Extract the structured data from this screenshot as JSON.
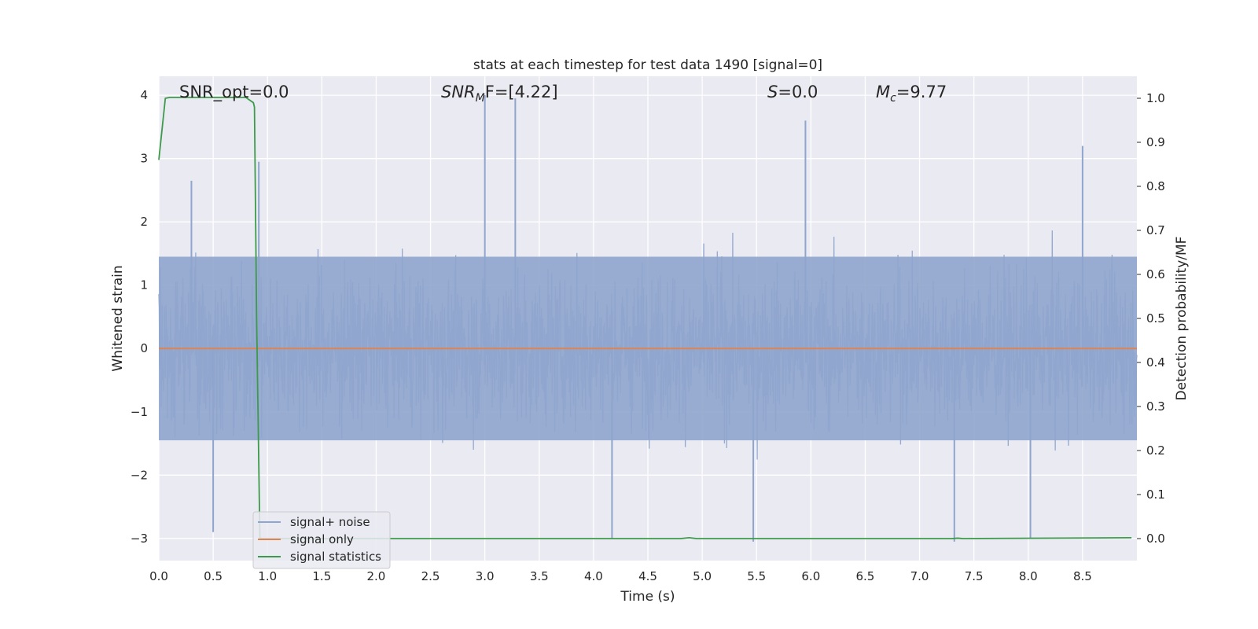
{
  "chart_data": {
    "type": "line",
    "title": "stats at each timestep for test data 1490 [signal=0]",
    "xlabel": "Time (s)",
    "ylabel_left": "Whitened strain",
    "ylabel_right": "Detection probability/MF",
    "xlim": [
      0,
      9
    ],
    "ylim_left": [
      -3.35,
      4.3
    ],
    "ylim_right": [
      -0.05,
      1.05
    ],
    "xticks": [
      "0.0",
      "0.5",
      "1.0",
      "1.5",
      "2.0",
      "2.5",
      "3.0",
      "3.5",
      "4.0",
      "4.5",
      "5.0",
      "5.5",
      "6.0",
      "6.5",
      "7.0",
      "7.5",
      "8.0",
      "8.5"
    ],
    "yticks_left": [
      "4",
      "3",
      "2",
      "1",
      "0",
      "−1",
      "−2",
      "−3"
    ],
    "yticks_right": [
      "1.0",
      "0.9",
      "0.8",
      "0.7",
      "0.6",
      "0.5",
      "0.4",
      "0.3",
      "0.2",
      "0.1",
      "0.0"
    ],
    "grid": true,
    "legend_position": "lower-left",
    "annotations": {
      "snr_opt": "SNR_opt=0.0",
      "snr_mf_label": "SNR",
      "snr_mf_sub": "M",
      "snr_mf_rest": "F=[4.22]",
      "s_label": "S",
      "s_rest": "=0.0",
      "mc_label": "M",
      "mc_sub": "c",
      "mc_rest": "=9.77"
    },
    "series": [
      {
        "name": "signal+ noise",
        "color": "#8fa5cd",
        "axis": "left",
        "kind": "noise",
        "peaks": [
          [
            0.3,
            2.65
          ],
          [
            0.92,
            2.95
          ],
          [
            3.0,
            4.0
          ],
          [
            3.28,
            3.95
          ],
          [
            5.95,
            3.6
          ],
          [
            8.5,
            3.2
          ],
          [
            0.5,
            -2.9
          ],
          [
            4.17,
            -3.0
          ],
          [
            5.47,
            -3.05
          ],
          [
            7.32,
            -3.05
          ],
          [
            8.02,
            -3.0
          ]
        ]
      },
      {
        "name": "signal only",
        "color": "#dd8452",
        "axis": "left",
        "x": [
          0,
          9
        ],
        "y": [
          0,
          0
        ]
      },
      {
        "name": "signal statistics",
        "color": "#3d9a4a",
        "axis": "right",
        "x": [
          0,
          0.06,
          0.1,
          0.2,
          0.5,
          0.8,
          0.87,
          0.88,
          0.9,
          0.93,
          1.0,
          4.8,
          4.88,
          4.95,
          7.3,
          7.35,
          7.4,
          8.95
        ],
        "y": [
          0.86,
          1.0,
          1.002,
          1.002,
          1.002,
          1.002,
          0.99,
          0.98,
          0.5,
          0.0,
          0.0,
          0.0,
          0.002,
          0.0,
          0.0,
          0.001,
          0.0,
          0.002
        ]
      }
    ]
  }
}
